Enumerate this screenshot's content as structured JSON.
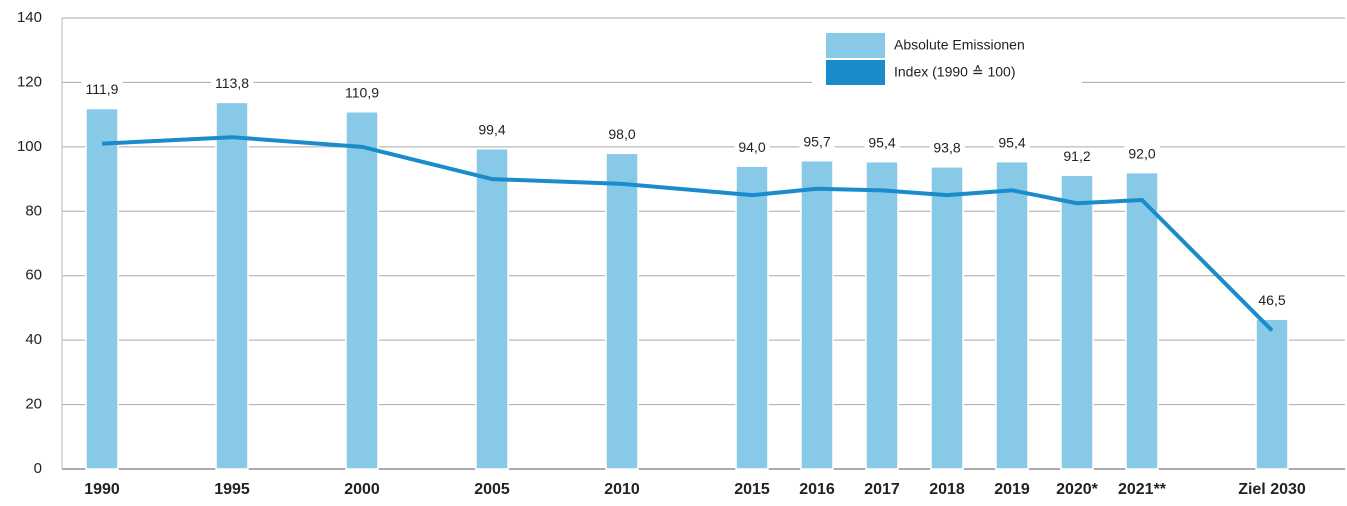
{
  "chart_data": {
    "type": "bar",
    "categories": [
      "1990",
      "1995",
      "2000",
      "2005",
      "2010",
      "2015",
      "2016",
      "2017",
      "2018",
      "2019",
      "2020*",
      "2021**",
      "Ziel 2030"
    ],
    "series": [
      {
        "name": "Absolute Emissionen",
        "type": "bar",
        "color": "#89c9e8",
        "values": [
          111.9,
          113.8,
          110.9,
          99.4,
          98.0,
          94.0,
          95.7,
          95.4,
          93.8,
          95.4,
          91.2,
          92.0,
          46.5
        ],
        "value_labels": [
          "111,9",
          "113,8",
          "110,9",
          "99,4",
          "98,0",
          "94,0",
          "95,7",
          "95,4",
          "93,8",
          "95,4",
          "91,2",
          "92,0",
          "46,5"
        ]
      },
      {
        "name": "Index (1990 ≙ 100)",
        "type": "line",
        "color": "#1a8ccc",
        "values": [
          101,
          103,
          100,
          90,
          88.5,
          85,
          87,
          86.5,
          85,
          86.5,
          82.5,
          83.5,
          43
        ]
      }
    ],
    "ylim": [
      0,
      140
    ],
    "yticks": [
      0,
      20,
      40,
      60,
      80,
      100,
      120,
      140
    ],
    "grid": true,
    "legend": "top-right"
  }
}
